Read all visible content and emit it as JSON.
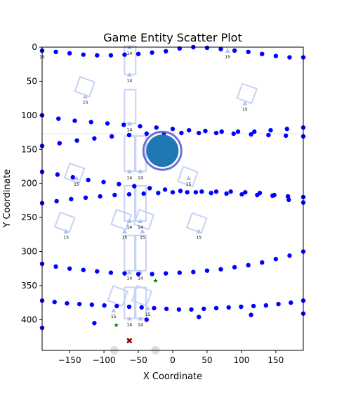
{
  "chart_data": {
    "type": "scatter",
    "title": "Game Entity Scatter Plot",
    "xlabel": "X Coordinate",
    "ylabel": "Y Coordinate",
    "xlim": [
      -190,
      190
    ],
    "ylim": [
      445,
      0
    ],
    "y_inverted": true,
    "x_ticks": [
      -150,
      -100,
      -50,
      0,
      50,
      100,
      150
    ],
    "y_ticks": [
      0,
      50,
      100,
      150,
      200,
      250,
      300,
      350,
      400
    ],
    "grid": false,
    "colors": {
      "entity": "#0000ff",
      "player": "#1f77b4",
      "player_ring": "#6f6fd8",
      "item": "#008000",
      "target": "#8b0000",
      "zone_outline": "#c8d2f5",
      "marker": "#a9c3e6"
    },
    "rows": [
      {
        "y": [
          5,
          7,
          9,
          11,
          12,
          12,
          11,
          10,
          8,
          6,
          2,
          0,
          1,
          3,
          5,
          7,
          10,
          13,
          15,
          15
        ]
      },
      {
        "y": [
          100,
          105,
          108,
          110,
          112,
          114,
          116,
          118,
          120,
          122,
          123,
          124,
          124,
          124,
          122,
          120,
          118
        ]
      },
      {
        "y": [
          145,
          141,
          137,
          134,
          131,
          129,
          127,
          126,
          126,
          126,
          126,
          127,
          128,
          129,
          130,
          131
        ]
      },
      {
        "y": [
          183,
          187,
          191,
          195,
          198,
          201,
          204,
          207,
          209,
          211,
          213,
          214,
          215,
          216,
          217,
          218,
          219,
          220
        ]
      },
      {
        "y": [
          229,
          226,
          223,
          221,
          219,
          217,
          216,
          215,
          214,
          213,
          213,
          212,
          212,
          212,
          213,
          214,
          217,
          224,
          228
        ]
      },
      {
        "y": [
          318,
          322,
          325,
          327,
          329,
          331,
          332,
          333,
          333,
          332,
          331,
          330,
          328,
          326,
          323,
          320,
          316,
          311,
          306,
          300
        ]
      },
      {
        "y": [
          372,
          374,
          376,
          377,
          378,
          379,
          380,
          381,
          382,
          383,
          384,
          385,
          385,
          384,
          383,
          382,
          381,
          380,
          379,
          377,
          375,
          372
        ]
      },
      {
        "y": [
          412,
          405,
          400,
          396,
          393,
          391
        ]
      }
    ],
    "player": {
      "x": -15,
      "y": 152
    },
    "items": [
      {
        "x": -25,
        "y": 343
      },
      {
        "x": -82,
        "y": 408
      }
    ],
    "target": {
      "x": -63,
      "y": 431
    },
    "labels": [
      "14",
      "15"
    ]
  }
}
